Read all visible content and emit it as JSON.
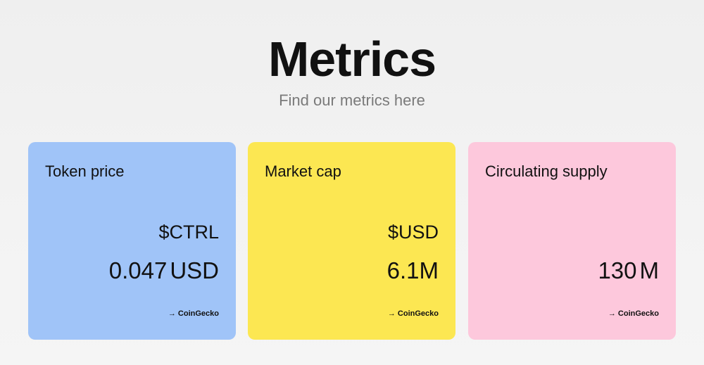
{
  "header": {
    "title": "Metrics",
    "subtitle": "Find our metrics here"
  },
  "colors": {
    "card_1_bg": "#a0c4f8",
    "card_2_bg": "#fce752",
    "card_3_bg": "#fdc8dc"
  },
  "cards": [
    {
      "label": "Token price",
      "unit": "$CTRL",
      "value": "0.047",
      "value_suffix": "USD",
      "source_arrow": "→",
      "source_label": "CoinGecko"
    },
    {
      "label": "Market cap",
      "unit": "$USD",
      "value": "6.1M",
      "value_suffix": "",
      "source_arrow": "→",
      "source_label": "CoinGecko"
    },
    {
      "label": "Circulating supply",
      "unit": "",
      "value": "130",
      "value_suffix": "M",
      "source_arrow": "→",
      "source_label": "CoinGecko"
    }
  ]
}
